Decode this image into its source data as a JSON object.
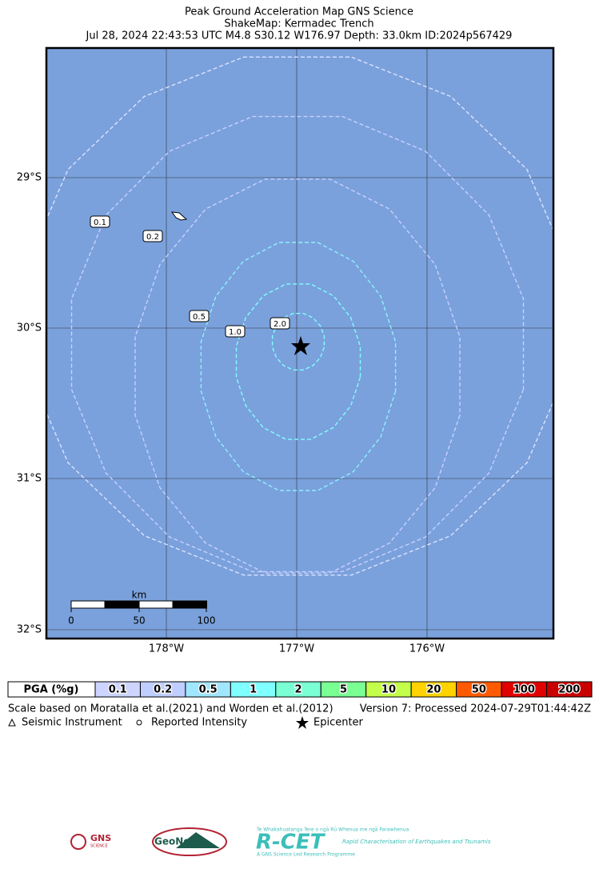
{
  "header": {
    "title": "Peak Ground Acceleration Map GNS Science",
    "subtitle": "ShakeMap: Kermadec Trench",
    "event": "Jul 28, 2024 22:43:53 UTC M4.8 S30.12 W176.97 Depth: 33.0km ID:2024p567429"
  },
  "map": {
    "lat_ticks": [
      "29°S",
      "30°S",
      "31°S",
      "32°S"
    ],
    "lon_ticks": [
      "178°W",
      "177°W",
      "176°W"
    ],
    "contour_labels": [
      "0.1",
      "0.2",
      "0.5",
      "1.0",
      "2.0"
    ],
    "scale_bar": {
      "unit": "km",
      "labels": [
        "0",
        "50",
        "100"
      ]
    }
  },
  "legend": {
    "header": "PGA (%g)",
    "items": [
      {
        "label": "0.1",
        "color": "#cdd4ff"
      },
      {
        "label": "0.2",
        "color": "#bfcdff"
      },
      {
        "label": "0.5",
        "color": "#a0e6ff"
      },
      {
        "label": "1",
        "color": "#80ffff"
      },
      {
        "label": "2",
        "color": "#7affd4"
      },
      {
        "label": "5",
        "color": "#7aff93"
      },
      {
        "label": "10",
        "color": "#c3ff4a"
      },
      {
        "label": "20",
        "color": "#ffd200"
      },
      {
        "label": "50",
        "color": "#ff5a00"
      },
      {
        "label": "100",
        "color": "#e00000"
      },
      {
        "label": "200",
        "color": "#c80000"
      }
    ]
  },
  "footer": {
    "scale_note": "Scale based on Moratalla et al.(2021) and Worden et al.(2012)",
    "version": "Version 7: Processed 2024-07-29T01:44:42Z",
    "symbols": [
      "Seismic Instrument",
      "Reported Intensity",
      "Epicenter"
    ]
  },
  "logos": {
    "gns": "GNS",
    "gns_sub": "SCIENCE",
    "geonet": "GeoNet",
    "rcet": "R-CET",
    "rcet_tag": "Te Whakahuatanga Tere o ngā Rū Whenua me ngā Parawhenua",
    "rcet_sub": "Rapid Characterisation of Earthquakes and Tsunamis",
    "rcet_prog": "A GNS Science Led Research Programme"
  }
}
